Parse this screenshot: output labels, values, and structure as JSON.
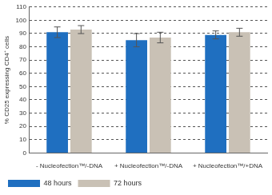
{
  "chart_data": {
    "type": "bar",
    "y_label": "% CD25 expressing CD4⁺ cells",
    "categories": [
      "- Nucleofection™/-DNA",
      "+ Nucleofection™/-DNA",
      "+ Nucleofection™/+DNA"
    ],
    "series": [
      {
        "name": "48 hours",
        "color": "#1f6fc0",
        "values": [
          91,
          85,
          89
        ],
        "errors": [
          4,
          5,
          3
        ]
      },
      {
        "name": "72 hours",
        "color": "#c9c1b5",
        "values": [
          93,
          87,
          91
        ],
        "errors": [
          3,
          4,
          3
        ]
      }
    ],
    "ylim": [
      0,
      110
    ],
    "yticks": [
      0,
      10,
      20,
      30,
      40,
      50,
      60,
      70,
      80,
      90,
      100,
      110
    ],
    "grid": true,
    "legend": "bottom"
  }
}
